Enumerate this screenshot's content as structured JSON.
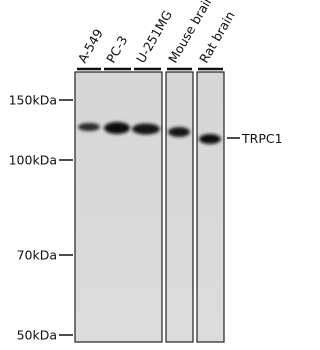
{
  "lanes": [
    "A-549",
    "PC-3",
    "U-251MG",
    "Mouse brain",
    "Rat brain"
  ],
  "markers": [
    "150kDa",
    "100kDa",
    "70kDa",
    "50kDa"
  ],
  "target": "TRPC1"
}
